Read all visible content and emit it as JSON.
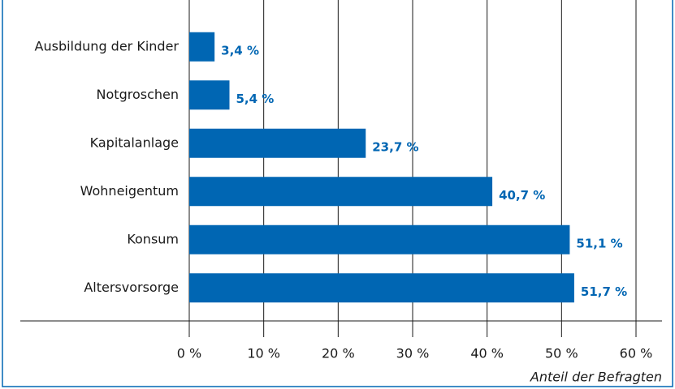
{
  "chart_data": {
    "type": "bar",
    "orientation": "horizontal",
    "categories": [
      "Ausbildung der Kinder",
      "Notgroschen",
      "Kapitalanlage",
      "Wohneigentum",
      "Konsum",
      "Altersvorsorge"
    ],
    "values": [
      3.4,
      5.4,
      23.7,
      40.7,
      51.1,
      51.7
    ],
    "value_labels": [
      "3,4 %",
      "5,4 %",
      "23,7 %",
      "40,7 %",
      "51,1 %",
      "51,7 %"
    ],
    "color": "#0066b3",
    "xlabel": "Anteil der Befragten",
    "xlim": [
      0,
      60
    ],
    "xticks": [
      {
        "value": 0,
        "label": "0 %"
      },
      {
        "value": 10,
        "label": "10 %"
      },
      {
        "value": 20,
        "label": "20 %"
      },
      {
        "value": 30,
        "label": "30 %"
      },
      {
        "value": 40,
        "label": "40 %"
      },
      {
        "value": 50,
        "label": "50 %"
      },
      {
        "value": 60,
        "label": "60 %"
      }
    ],
    "grid": true
  }
}
